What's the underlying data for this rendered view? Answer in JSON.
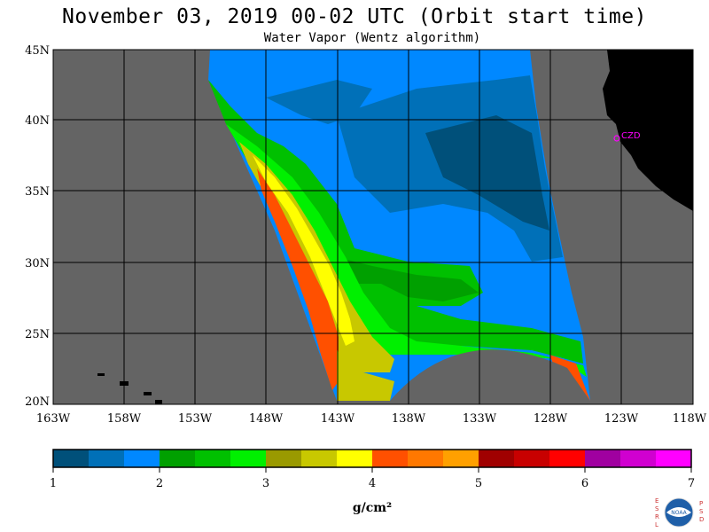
{
  "header": {
    "title": "November 03, 2019  00-02 UTC  (Orbit start time)",
    "subtitle": "Water Vapor (Wentz algorithm)"
  },
  "axes": {
    "lat_labels": [
      "45N",
      "40N",
      "35N",
      "30N",
      "25N",
      "20N"
    ],
    "lon_labels": [
      "163W",
      "158W",
      "153W",
      "148W",
      "143W",
      "138W",
      "133W",
      "128W",
      "123W",
      "118W"
    ]
  },
  "station": {
    "label": "CZD",
    "color": "#ff00ff"
  },
  "colorbar": {
    "ticks": [
      "1",
      "2",
      "3",
      "4",
      "5",
      "6",
      "7"
    ],
    "unit": "g/cm²",
    "colors": [
      "#00507a",
      "#0070b8",
      "#0088ff",
      "#00a000",
      "#00c000",
      "#00f000",
      "#9a9a00",
      "#c8c800",
      "#ffff00",
      "#ff5000",
      "#ff7800",
      "#ffa000",
      "#a00000",
      "#c80000",
      "#ff0000",
      "#a000a0",
      "#d000d0",
      "#ff00ff"
    ]
  },
  "colors": {
    "land": "#000000",
    "no_data": "#646464",
    "grid": "#000000"
  },
  "logo": {
    "left_letters": "ESRL",
    "right_letters": "PSD",
    "center_text": "NOAA"
  }
}
